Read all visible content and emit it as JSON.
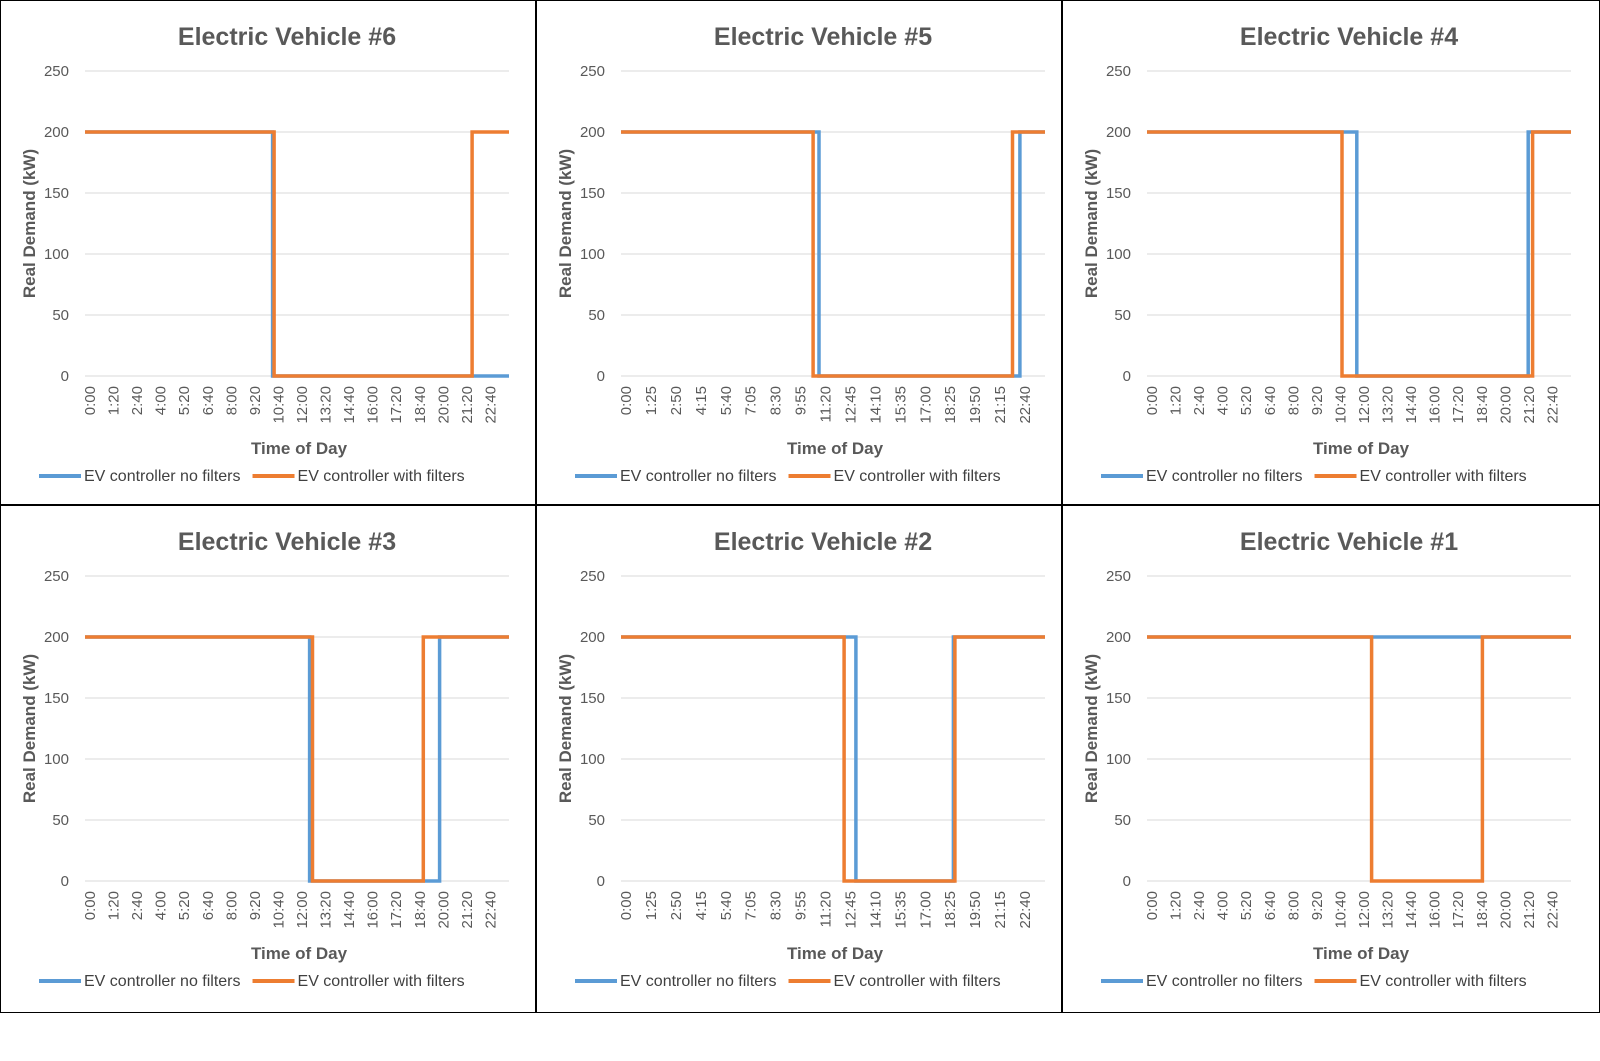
{
  "chart_data": [
    {
      "type": "line",
      "title": "Electric Vehicle #6",
      "xlabel": "Time of Day",
      "ylabel": "Real Demand (kW)",
      "ylim": [
        0,
        250
      ],
      "yticks": [
        "250",
        "200",
        "150",
        "100",
        "50",
        "0"
      ],
      "xlim": [
        0,
        1435
      ],
      "xtick_labels": [
        "0:00",
        "1:20",
        "2:40",
        "4:00",
        "5:20",
        "6:40",
        "8:00",
        "9:20",
        "10:40",
        "12:00",
        "13:20",
        "14:40",
        "16:00",
        "17:20",
        "18:40",
        "20:00",
        "21:20",
        "22:40"
      ],
      "grid": true,
      "legend": "bottom",
      "series": [
        {
          "name": "EV controller no filters",
          "color": "#5B9BD5",
          "x": [
            "0:00",
            "10:35",
            "10:35",
            "23:55"
          ],
          "y": [
            200,
            200,
            0,
            0
          ]
        },
        {
          "name": "EV controller with filters",
          "color": "#ED7D31",
          "x": [
            "0:00",
            "10:40",
            "10:40",
            "21:50",
            "21:50",
            "23:55"
          ],
          "y": [
            200,
            200,
            0,
            0,
            200,
            200
          ]
        }
      ]
    },
    {
      "type": "line",
      "title": "Electric Vehicle #5",
      "xlabel": "Time of Day",
      "ylabel": "Real Demand (kW)",
      "ylim": [
        0,
        250
      ],
      "yticks": [
        "250",
        "200",
        "150",
        "100",
        "50",
        "0"
      ],
      "xlim": [
        0,
        1435
      ],
      "xtick_labels": [
        "0:00",
        "1:25",
        "2:50",
        "4:15",
        "5:40",
        "7:05",
        "8:30",
        "9:55",
        "11:20",
        "12:45",
        "14:10",
        "15:35",
        "17:00",
        "18:25",
        "19:50",
        "21:15",
        "22:40"
      ],
      "grid": true,
      "legend": "bottom",
      "series": [
        {
          "name": "EV controller no filters",
          "color": "#5B9BD5",
          "x": [
            "0:00",
            "11:10",
            "11:10",
            "22:30",
            "22:30",
            "23:55"
          ],
          "y": [
            200,
            200,
            0,
            0,
            200,
            200
          ]
        },
        {
          "name": "EV controller with filters",
          "color": "#ED7D31",
          "x": [
            "0:00",
            "10:50",
            "10:50",
            "22:05",
            "22:05",
            "23:55"
          ],
          "y": [
            200,
            200,
            0,
            0,
            200,
            200
          ]
        }
      ]
    },
    {
      "type": "line",
      "title": "Electric Vehicle #4",
      "xlabel": "Time of Day",
      "ylabel": "Real Demand (kW)",
      "ylim": [
        0,
        250
      ],
      "yticks": [
        "250",
        "200",
        "150",
        "100",
        "50",
        "0"
      ],
      "xlim": [
        0,
        1435
      ],
      "xtick_labels": [
        "0:00",
        "1:20",
        "2:40",
        "4:00",
        "5:20",
        "6:40",
        "8:00",
        "9:20",
        "10:40",
        "12:00",
        "13:20",
        "14:40",
        "16:00",
        "17:20",
        "18:40",
        "20:00",
        "21:20",
        "22:40"
      ],
      "grid": true,
      "legend": "bottom",
      "series": [
        {
          "name": "EV controller no filters",
          "color": "#5B9BD5",
          "x": [
            "0:00",
            "11:50",
            "11:50",
            "21:30",
            "21:30",
            "23:55"
          ],
          "y": [
            200,
            200,
            0,
            0,
            200,
            200
          ]
        },
        {
          "name": "EV controller with filters",
          "color": "#ED7D31",
          "x": [
            "0:00",
            "11:00",
            "11:00",
            "21:45",
            "21:45",
            "23:55"
          ],
          "y": [
            200,
            200,
            0,
            0,
            200,
            200
          ]
        }
      ]
    },
    {
      "type": "line",
      "title": "Electric Vehicle #3",
      "xlabel": "Time of Day",
      "ylabel": "Real Demand (kW)",
      "ylim": [
        0,
        250
      ],
      "yticks": [
        "250",
        "200",
        "150",
        "100",
        "50",
        "0"
      ],
      "xlim": [
        0,
        1435
      ],
      "xtick_labels": [
        "0:00",
        "1:20",
        "2:40",
        "4:00",
        "5:20",
        "6:40",
        "8:00",
        "9:20",
        "10:40",
        "12:00",
        "13:20",
        "14:40",
        "16:00",
        "17:20",
        "18:40",
        "20:00",
        "21:20",
        "22:40"
      ],
      "grid": true,
      "legend": "bottom",
      "series": [
        {
          "name": "EV controller no filters",
          "color": "#5B9BD5",
          "x": [
            "0:00",
            "12:40",
            "12:40",
            "20:00",
            "20:00",
            "23:55"
          ],
          "y": [
            200,
            200,
            0,
            0,
            200,
            200
          ]
        },
        {
          "name": "EV controller with filters",
          "color": "#ED7D31",
          "x": [
            "0:00",
            "12:50",
            "12:50",
            "19:05",
            "19:05",
            "23:55"
          ],
          "y": [
            200,
            200,
            0,
            0,
            200,
            200
          ]
        }
      ]
    },
    {
      "type": "line",
      "title": "Electric Vehicle #2",
      "xlabel": "Time of Day",
      "ylabel": "Real Demand (kW)",
      "ylim": [
        0,
        250
      ],
      "yticks": [
        "250",
        "200",
        "150",
        "100",
        "50",
        "0"
      ],
      "xlim": [
        0,
        1435
      ],
      "xtick_labels": [
        "0:00",
        "1:25",
        "2:50",
        "4:15",
        "5:40",
        "7:05",
        "8:30",
        "9:55",
        "11:20",
        "12:45",
        "14:10",
        "15:35",
        "17:00",
        "18:25",
        "19:50",
        "21:15",
        "22:40"
      ],
      "grid": true,
      "legend": "bottom",
      "series": [
        {
          "name": "EV controller no filters",
          "color": "#5B9BD5",
          "x": [
            "0:00",
            "13:15",
            "13:15",
            "18:45",
            "18:45",
            "23:55"
          ],
          "y": [
            200,
            200,
            0,
            0,
            200,
            200
          ]
        },
        {
          "name": "EV controller with filters",
          "color": "#ED7D31",
          "x": [
            "0:00",
            "12:35",
            "12:35",
            "18:50",
            "18:50",
            "23:55"
          ],
          "y": [
            200,
            200,
            0,
            0,
            200,
            200
          ]
        }
      ]
    },
    {
      "type": "line",
      "title": "Electric Vehicle #1",
      "xlabel": "Time of Day",
      "ylabel": "Real Demand (kW)",
      "ylim": [
        0,
        250
      ],
      "yticks": [
        "250",
        "200",
        "150",
        "100",
        "50",
        "0"
      ],
      "xlim": [
        0,
        1435
      ],
      "xtick_labels": [
        "0:00",
        "1:20",
        "2:40",
        "4:00",
        "5:20",
        "6:40",
        "8:00",
        "9:20",
        "10:40",
        "12:00",
        "13:20",
        "14:40",
        "16:00",
        "17:20",
        "18:40",
        "20:00",
        "21:20",
        "22:40"
      ],
      "grid": true,
      "legend": "bottom",
      "series": [
        {
          "name": "EV controller no filters",
          "color": "#5B9BD5",
          "x": [
            "0:00",
            "23:55"
          ],
          "y": [
            200,
            200
          ]
        },
        {
          "name": "EV controller with filters",
          "color": "#ED7D31",
          "x": [
            "0:00",
            "12:40",
            "12:40",
            "18:55",
            "18:55",
            "23:55"
          ],
          "y": [
            200,
            200,
            0,
            0,
            200,
            200
          ]
        }
      ]
    }
  ]
}
